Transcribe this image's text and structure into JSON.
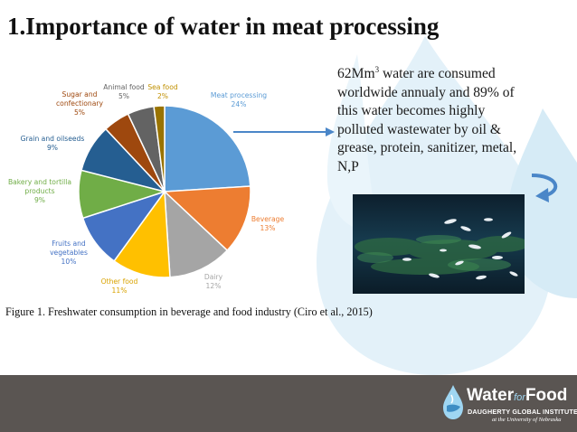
{
  "title": "1.Importance of water in meat processing",
  "description": {
    "line1_pre": "62Mm",
    "line1_sup": "3",
    "line1_post": " water are consumed",
    "line2": "worldwide annualy and 89% of",
    "line3": "this water becomes highly",
    "line4": "polluted wastewater by oil &",
    "line5": "grease, protein, sanitizer, metal,",
    "line6": "N,P"
  },
  "caption": "Figure 1. Freshwater consumption in beverage and food industry (Ciro et al., 2015)",
  "logo": {
    "word_water": "Water",
    "word_for": "for",
    "word_food": "Food",
    "sub1": "DAUGHERTY GLOBAL INSTITUTE",
    "sub2": "at the University of Nebraska"
  },
  "colors": {
    "footer": "#5a5552",
    "water_drop": "#c8e6f5",
    "arrow": "#4a86c8",
    "text_dark": "#111111"
  },
  "chart_data": {
    "type": "pie",
    "title": "",
    "unit": "%",
    "slices": [
      {
        "name": "Meat processing",
        "value": 24,
        "label": "24%",
        "color": "#5b9bd5",
        "label_color": "#5b9bd5"
      },
      {
        "name": "Beverage",
        "value": 13,
        "label": "13%",
        "color": "#ed7d31",
        "label_color": "#ed7d31"
      },
      {
        "name": "Dairy",
        "value": 12,
        "label": "12%",
        "color": "#a5a5a5",
        "label_color": "#a5a5a5"
      },
      {
        "name": "Other food",
        "value": 11,
        "label": "11%",
        "color": "#ffc000",
        "label_color": "#d9a300"
      },
      {
        "name": "Fruits and vegetables",
        "value": 10,
        "label": "10%",
        "color": "#4472c4",
        "label_color": "#4472c4"
      },
      {
        "name": "Bakery and tortilla products",
        "value": 9,
        "label": "9%",
        "color": "#70ad47",
        "label_color": "#70ad47"
      },
      {
        "name": "Grain and oilseeds",
        "value": 9,
        "label": "9%",
        "color": "#255e91",
        "label_color": "#255e91"
      },
      {
        "name": "Sugar and confectionary",
        "value": 5,
        "label": "5%",
        "color": "#9e480e",
        "label_color": "#9e480e"
      },
      {
        "name": "Animal food",
        "value": 5,
        "label": "5%",
        "color": "#636363",
        "label_color": "#636363"
      },
      {
        "name": "Sea food",
        "value": 2,
        "label": "2%",
        "color": "#997300",
        "label_color": "#c09000"
      }
    ],
    "start_angle_deg": 0,
    "direction": "clockwise",
    "legend": "none",
    "labels_outside": true
  }
}
